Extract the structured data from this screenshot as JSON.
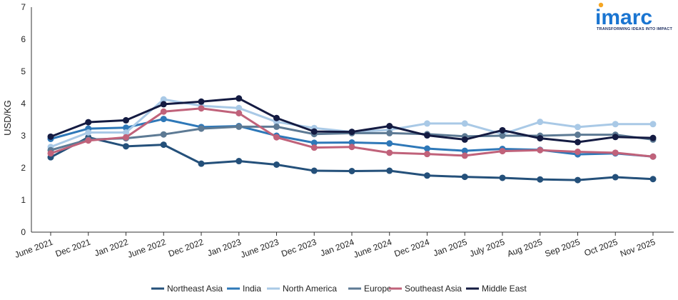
{
  "brand": {
    "name": "imarc",
    "tagline": "TRANSFORMING IDEAS INTO IMPACT",
    "accent": "#f5a623",
    "color": "#1a75d1"
  },
  "chart_data": {
    "type": "line",
    "title": "",
    "xlabel": "",
    "ylabel": "USD/KG",
    "ylim": [
      0,
      7
    ],
    "yticks": [
      0,
      1,
      2,
      3,
      4,
      5,
      6,
      7
    ],
    "grid": false,
    "legend": "bottom",
    "categories": [
      "June 2021",
      "Dec 2021",
      "Jan 2022",
      "June 2022",
      "Dec 2022",
      "Jan 2023",
      "June 2023",
      "Dec 2023",
      "Jan 2024",
      "June 2024",
      "Dec 2024",
      "Jan 2025",
      "July 2025",
      "Aug 2025",
      "Sep 2025",
      "Oct 2025",
      "Nov 2025"
    ],
    "series": [
      {
        "name": "Northeast Asia",
        "color": "#24507a",
        "values": [
          2.33,
          2.95,
          2.67,
          2.72,
          2.13,
          2.21,
          2.1,
          1.91,
          1.9,
          1.91,
          1.76,
          1.72,
          1.69,
          1.64,
          1.62,
          1.71,
          1.65
        ]
      },
      {
        "name": "India",
        "color": "#2e78b8",
        "values": [
          2.9,
          3.22,
          3.25,
          3.52,
          3.27,
          3.3,
          3.0,
          2.78,
          2.79,
          2.76,
          2.6,
          2.53,
          2.59,
          2.56,
          2.42,
          2.45,
          2.35
        ]
      },
      {
        "name": "North America",
        "color": "#a9c9e6",
        "values": [
          2.65,
          3.1,
          3.1,
          4.13,
          3.93,
          3.86,
          3.43,
          3.24,
          3.12,
          3.18,
          3.38,
          3.38,
          3.05,
          3.43,
          3.27,
          3.36,
          3.36
        ]
      },
      {
        "name": "Europe",
        "color": "#5d7a94",
        "values": [
          2.55,
          2.88,
          2.92,
          3.04,
          3.22,
          3.28,
          3.28,
          3.05,
          3.08,
          3.08,
          3.05,
          2.98,
          3.0,
          3.0,
          3.03,
          3.03,
          2.88
        ]
      },
      {
        "name": "Southeast Asia",
        "color": "#c0627a",
        "values": [
          2.45,
          2.85,
          2.95,
          3.75,
          3.85,
          3.7,
          2.95,
          2.63,
          2.65,
          2.47,
          2.43,
          2.38,
          2.52,
          2.55,
          2.5,
          2.47,
          2.35
        ]
      },
      {
        "name": "Middle East",
        "color": "#141b42",
        "values": [
          2.97,
          3.42,
          3.48,
          3.98,
          4.06,
          4.16,
          3.55,
          3.13,
          3.12,
          3.3,
          3.01,
          2.88,
          3.17,
          2.92,
          2.8,
          2.96,
          2.93
        ]
      }
    ]
  }
}
